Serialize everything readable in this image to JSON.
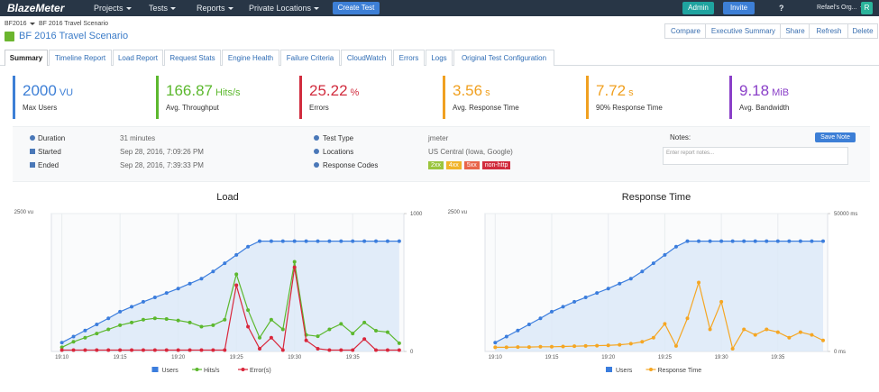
{
  "nav": {
    "logo": "BlazeMeter",
    "items": [
      "Projects",
      "Tests",
      "Reports",
      "Private Locations"
    ],
    "create": "Create Test",
    "admin": "Admin",
    "invite": "Invite",
    "help": "?",
    "org": "Refael's Org...",
    "avatar": "R"
  },
  "breadcrumb": [
    "BF2016",
    "BF 2016 Travel Scenario"
  ],
  "title": "BF 2016 Travel Scenario",
  "actions": [
    "Compare",
    "Executive Summary",
    "Share",
    "Refresh",
    "Delete"
  ],
  "tabs": [
    "Summary",
    "Timeline Report",
    "Load Report",
    "Request Stats",
    "Engine Health",
    "Failure Criteria",
    "CloudWatch",
    "Errors",
    "Logs",
    "Original Test Configuration"
  ],
  "kpis": [
    {
      "value": "2000",
      "unit": "VU",
      "label": "Max Users",
      "color": "#3d7fd6"
    },
    {
      "value": "166.87",
      "unit": "Hits/s",
      "label": "Avg. Throughput",
      "color": "#5cb82e"
    },
    {
      "value": "25.22",
      "unit": "%",
      "label": "Errors",
      "color": "#d12c3e"
    },
    {
      "value": "3.56",
      "unit": "s",
      "label": "Avg. Response Time",
      "color": "#f0a020"
    },
    {
      "value": "7.72",
      "unit": "s",
      "label": "90% Response Time",
      "color": "#f0a020"
    },
    {
      "value": "9.18",
      "unit": "MiB",
      "label": "Avg. Bandwidth",
      "color": "#8a3fc8"
    }
  ],
  "details": {
    "left": [
      {
        "label": "Duration",
        "value": "31 minutes"
      },
      {
        "label": "Started",
        "value": "Sep 28, 2016, 7:09:26 PM"
      },
      {
        "label": "Ended",
        "value": "Sep 28, 2016, 7:39:33 PM"
      }
    ],
    "right": [
      {
        "label": "Test Type",
        "value": "jmeter"
      },
      {
        "label": "Locations",
        "value": "US Central (Iowa, Google)"
      },
      {
        "label": "Response Codes"
      }
    ],
    "codes": [
      {
        "label": "2xx",
        "color": "#9bc53d"
      },
      {
        "label": "4xx",
        "color": "#f0b429"
      },
      {
        "label": "5xx",
        "color": "#e8664a"
      },
      {
        "label": "non-http",
        "color": "#d12c3e"
      }
    ]
  },
  "notes": {
    "label": "Notes:",
    "button": "Save Note",
    "placeholder": "Enter report notes..."
  },
  "chart_data": [
    {
      "type": "line",
      "title": "Load",
      "x": [
        10,
        11,
        12,
        13,
        14,
        15,
        16,
        17,
        18,
        19,
        20,
        21,
        22,
        23,
        24,
        25,
        26,
        27,
        28,
        29,
        30,
        31,
        32,
        33,
        34,
        35,
        36,
        37,
        38,
        39
      ],
      "xlim": [
        9.1,
        39.4
      ],
      "xticks": [
        {
          "value": 10,
          "label": "19:10"
        },
        {
          "value": 15,
          "label": "19:15"
        },
        {
          "value": 20,
          "label": "19:20"
        },
        {
          "value": 25,
          "label": "19:25"
        },
        {
          "value": 30,
          "label": "19:30"
        },
        {
          "value": 35,
          "label": "19:35"
        }
      ],
      "ylim": [
        0,
        2500
      ],
      "yticks": [
        {
          "value": 2500,
          "label": "2500 vu"
        }
      ],
      "y2lim": [
        0,
        1000
      ],
      "y2ticks": [
        0,
        1000
      ],
      "series": [
        {
          "name": "Users",
          "color": "#3b7ddd",
          "area": true,
          "values": [
            160,
            270,
            380,
            490,
            600,
            720,
            810,
            900,
            980,
            1060,
            1140,
            1230,
            1320,
            1450,
            1600,
            1750,
            1900,
            2000,
            2000,
            2000,
            2000,
            2000,
            2000,
            2000,
            2000,
            2000,
            2000,
            2000,
            2000,
            2000
          ]
        },
        {
          "name": "Hits/s",
          "color": "#5cb82e",
          "axis": "y2",
          "values": [
            30,
            70,
            100,
            130,
            160,
            190,
            210,
            230,
            240,
            235,
            225,
            210,
            180,
            190,
            230,
            560,
            300,
            100,
            230,
            160,
            650,
            120,
            110,
            160,
            200,
            130,
            210,
            150,
            140,
            60
          ]
        },
        {
          "name": "Error(s)",
          "color": "#d9263b",
          "axis": "y2",
          "values": [
            10,
            10,
            10,
            10,
            10,
            10,
            10,
            10,
            10,
            10,
            10,
            10,
            10,
            10,
            10,
            480,
            180,
            20,
            100,
            10,
            610,
            80,
            20,
            10,
            10,
            10,
            90,
            10,
            10,
            10
          ]
        }
      ]
    },
    {
      "type": "line",
      "title": "Response Time",
      "x": [
        10,
        11,
        12,
        13,
        14,
        15,
        16,
        17,
        18,
        19,
        20,
        21,
        22,
        23,
        24,
        25,
        26,
        27,
        28,
        29,
        30,
        31,
        32,
        33,
        34,
        35,
        36,
        37,
        38,
        39
      ],
      "xlim": [
        9.1,
        39.4
      ],
      "xticks": [
        {
          "value": 10,
          "label": "19:10"
        },
        {
          "value": 15,
          "label": "19:15"
        },
        {
          "value": 20,
          "label": "19:20"
        },
        {
          "value": 25,
          "label": "19:25"
        },
        {
          "value": 30,
          "label": "19:30"
        },
        {
          "value": 35,
          "label": "19:35"
        }
      ],
      "ylim": [
        0,
        2500
      ],
      "yticks": [
        {
          "value": 2500,
          "label": "2500 vu"
        }
      ],
      "y2lim": [
        0,
        50000
      ],
      "y2ticks": [
        {
          "value": 0,
          "label": "0 ms"
        },
        {
          "value": 50000,
          "label": "50000 ms"
        }
      ],
      "series": [
        {
          "name": "Users",
          "color": "#3b7ddd",
          "area": true,
          "values": [
            160,
            270,
            380,
            490,
            600,
            720,
            810,
            900,
            980,
            1060,
            1140,
            1230,
            1320,
            1450,
            1600,
            1750,
            1900,
            2000,
            2000,
            2000,
            2000,
            2000,
            2000,
            2000,
            2000,
            2000,
            2000,
            2000,
            2000,
            2000
          ]
        },
        {
          "name": "Response Time",
          "color": "#f5a623",
          "axis": "y2",
          "values": [
            1500,
            1500,
            1600,
            1600,
            1700,
            1700,
            1800,
            1900,
            2000,
            2100,
            2200,
            2400,
            2800,
            3500,
            5000,
            10000,
            2000,
            12000,
            25000,
            8000,
            18000,
            1000,
            8000,
            6000,
            8000,
            7000,
            5000,
            7000,
            6000,
            4000
          ]
        }
      ]
    }
  ]
}
